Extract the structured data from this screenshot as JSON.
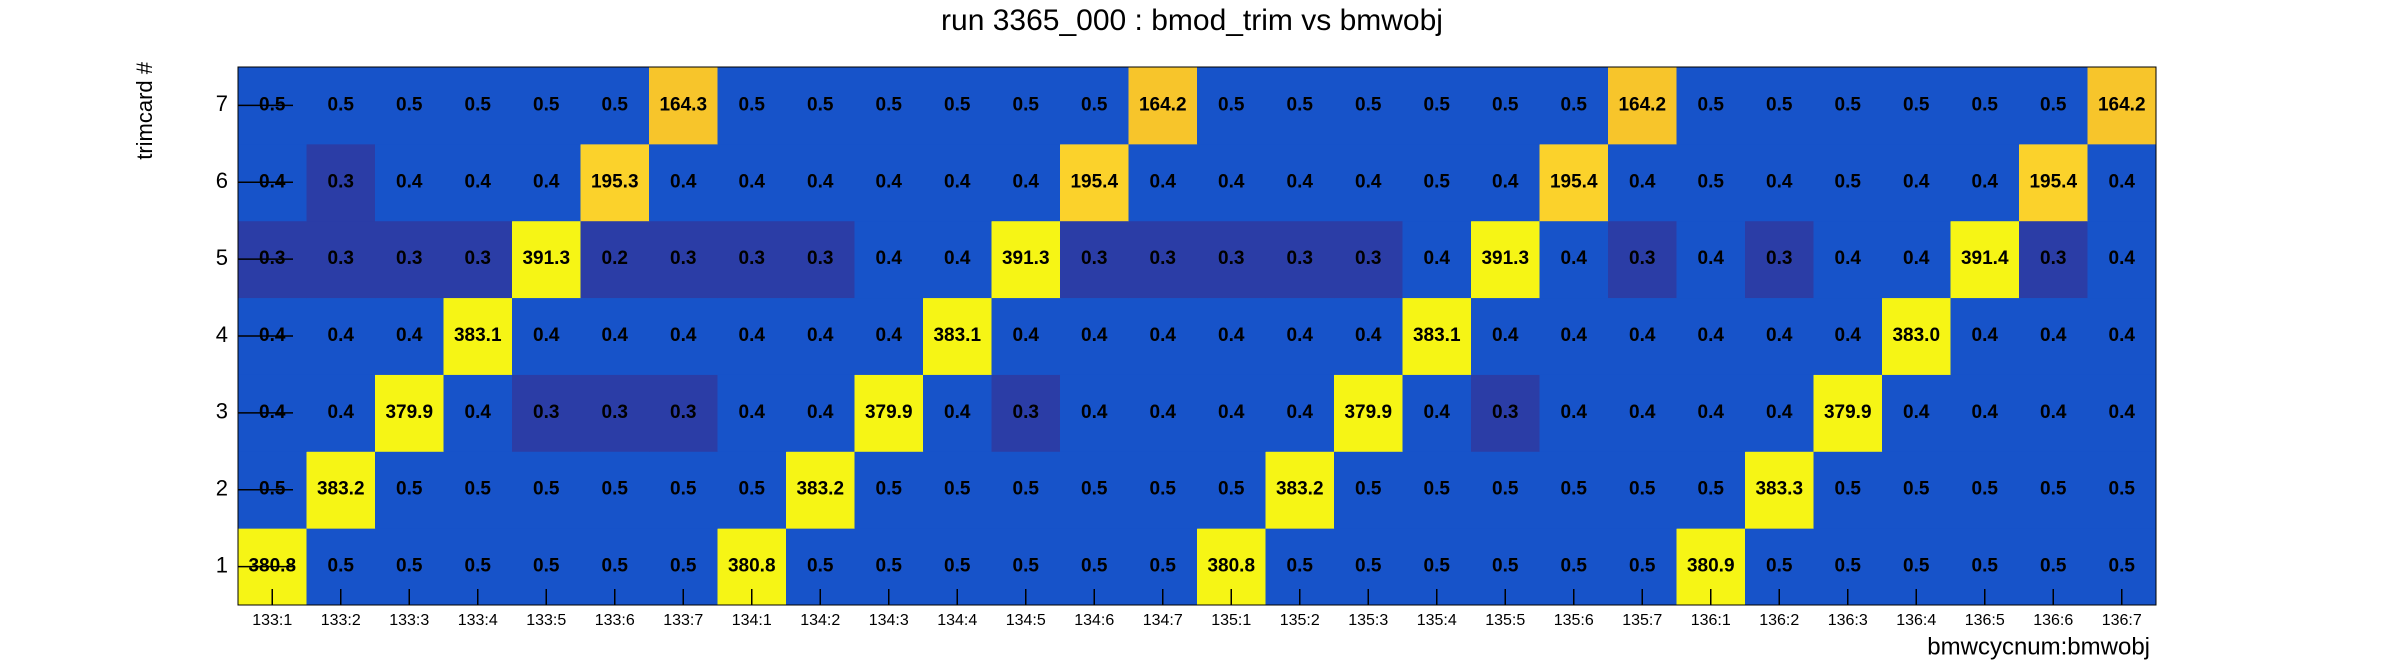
{
  "chart_data": {
    "type": "heatmap",
    "title": "run 3365_000 : bmod_trim vs bmwobj",
    "xlabel": "bmwcycnum:bmwobj",
    "ylabel": "trimcard #",
    "categories": [
      "133:1",
      "133:2",
      "133:3",
      "133:4",
      "133:5",
      "133:6",
      "133:7",
      "134:1",
      "134:2",
      "134:3",
      "134:4",
      "134:5",
      "134:6",
      "134:7",
      "135:1",
      "135:2",
      "135:3",
      "135:4",
      "135:5",
      "135:6",
      "135:7",
      "136:1",
      "136:2",
      "136:3",
      "136:4",
      "136:5",
      "136:6",
      "136:7"
    ],
    "y_categories": [
      1,
      2,
      3,
      4,
      5,
      6,
      7
    ],
    "values": [
      [
        380.8,
        0.5,
        0.5,
        0.5,
        0.5,
        0.5,
        0.5,
        380.8,
        0.5,
        0.5,
        0.5,
        0.5,
        0.5,
        0.5,
        380.8,
        0.5,
        0.5,
        0.5,
        0.5,
        0.5,
        0.5,
        380.9,
        0.5,
        0.5,
        0.5,
        0.5,
        0.5,
        0.5
      ],
      [
        0.5,
        383.2,
        0.5,
        0.5,
        0.5,
        0.5,
        0.5,
        0.5,
        383.2,
        0.5,
        0.5,
        0.5,
        0.5,
        0.5,
        0.5,
        383.2,
        0.5,
        0.5,
        0.5,
        0.5,
        0.5,
        0.5,
        383.3,
        0.5,
        0.5,
        0.5,
        0.5,
        0.5
      ],
      [
        0.4,
        0.4,
        379.9,
        0.4,
        0.3,
        0.3,
        0.3,
        0.4,
        0.4,
        379.9,
        0.4,
        0.3,
        0.4,
        0.4,
        0.4,
        0.4,
        379.9,
        0.4,
        0.3,
        0.4,
        0.4,
        0.4,
        0.4,
        379.9,
        0.4,
        0.4,
        0.4,
        0.4
      ],
      [
        0.4,
        0.4,
        0.4,
        383.1,
        0.4,
        0.4,
        0.4,
        0.4,
        0.4,
        0.4,
        383.1,
        0.4,
        0.4,
        0.4,
        0.4,
        0.4,
        0.4,
        383.1,
        0.4,
        0.4,
        0.4,
        0.4,
        0.4,
        0.4,
        383.0,
        0.4,
        0.4,
        0.4
      ],
      [
        0.3,
        0.3,
        0.3,
        0.3,
        391.3,
        0.2,
        0.3,
        0.3,
        0.3,
        0.4,
        0.4,
        391.3,
        0.3,
        0.3,
        0.3,
        0.3,
        0.3,
        0.4,
        391.3,
        0.4,
        0.3,
        0.4,
        0.3,
        0.4,
        0.4,
        391.4,
        0.3,
        0.4
      ],
      [
        0.4,
        0.3,
        0.4,
        0.4,
        0.4,
        195.3,
        0.4,
        0.4,
        0.4,
        0.4,
        0.4,
        0.4,
        195.4,
        0.4,
        0.4,
        0.4,
        0.4,
        0.5,
        0.4,
        195.4,
        0.4,
        0.5,
        0.4,
        0.5,
        0.4,
        0.4,
        195.4,
        0.4
      ],
      [
        0.5,
        0.5,
        0.5,
        0.5,
        0.5,
        0.5,
        164.3,
        0.5,
        0.5,
        0.5,
        0.5,
        0.5,
        0.5,
        164.2,
        0.5,
        0.5,
        0.5,
        0.5,
        0.5,
        0.5,
        164.2,
        0.5,
        0.5,
        0.5,
        0.5,
        0.5,
        0.5,
        164.2
      ]
    ],
    "value_labels": [
      [
        "380.8",
        "0.5",
        "0.5",
        "0.5",
        "0.5",
        "0.5",
        "0.5",
        "380.8",
        "0.5",
        "0.5",
        "0.5",
        "0.5",
        "0.5",
        "0.5",
        "380.8",
        "0.5",
        "0.5",
        "0.5",
        "0.5",
        "0.5",
        "0.5",
        "380.9",
        "0.5",
        "0.5",
        "0.5",
        "0.5",
        "0.5",
        "0.5"
      ],
      [
        "0.5",
        "383.2",
        "0.5",
        "0.5",
        "0.5",
        "0.5",
        "0.5",
        "0.5",
        "383.2",
        "0.5",
        "0.5",
        "0.5",
        "0.5",
        "0.5",
        "0.5",
        "383.2",
        "0.5",
        "0.5",
        "0.5",
        "0.5",
        "0.5",
        "0.5",
        "383.3",
        "0.5",
        "0.5",
        "0.5",
        "0.5",
        "0.5"
      ],
      [
        "0.4",
        "0.4",
        "379.9",
        "0.4",
        "0.3",
        "0.3",
        "0.3",
        "0.4",
        "0.4",
        "379.9",
        "0.4",
        "0.3",
        "0.4",
        "0.4",
        "0.4",
        "0.4",
        "379.9",
        "0.4",
        "0.3",
        "0.4",
        "0.4",
        "0.4",
        "0.4",
        "379.9",
        "0.4",
        "0.4",
        "0.4",
        "0.4"
      ],
      [
        "0.4",
        "0.4",
        "0.4",
        "383.1",
        "0.4",
        "0.4",
        "0.4",
        "0.4",
        "0.4",
        "0.4",
        "383.1",
        "0.4",
        "0.4",
        "0.4",
        "0.4",
        "0.4",
        "0.4",
        "383.1",
        "0.4",
        "0.4",
        "0.4",
        "0.4",
        "0.4",
        "0.4",
        "383.0",
        "0.4",
        "0.4",
        "0.4"
      ],
      [
        "0.3",
        "0.3",
        "0.3",
        "0.3",
        "391.3",
        "0.2",
        "0.3",
        "0.3",
        "0.3",
        "0.4",
        "0.4",
        "391.3",
        "0.3",
        "0.3",
        "0.3",
        "0.3",
        "0.3",
        "0.4",
        "391.3",
        "0.4",
        "0.3",
        "0.4",
        "0.3",
        "0.4",
        "0.4",
        "391.4",
        "0.3",
        "0.4"
      ],
      [
        "0.4",
        "0.3",
        "0.4",
        "0.4",
        "0.4",
        "195.3",
        "0.4",
        "0.4",
        "0.4",
        "0.4",
        "0.4",
        "0.4",
        "195.4",
        "0.4",
        "0.4",
        "0.4",
        "0.4",
        "0.5",
        "0.4",
        "195.4",
        "0.4",
        "0.5",
        "0.4",
        "0.5",
        "0.4",
        "0.4",
        "195.4",
        "0.4"
      ],
      [
        "0.5",
        "0.5",
        "0.5",
        "0.5",
        "0.5",
        "0.5",
        "164.3",
        "0.5",
        "0.5",
        "0.5",
        "0.5",
        "0.5",
        "0.5",
        "164.2",
        "0.5",
        "0.5",
        "0.5",
        "0.5",
        "0.5",
        "0.5",
        "164.2",
        "0.5",
        "0.5",
        "0.5",
        "0.5",
        "0.5",
        "0.5",
        "164.2"
      ]
    ]
  }
}
